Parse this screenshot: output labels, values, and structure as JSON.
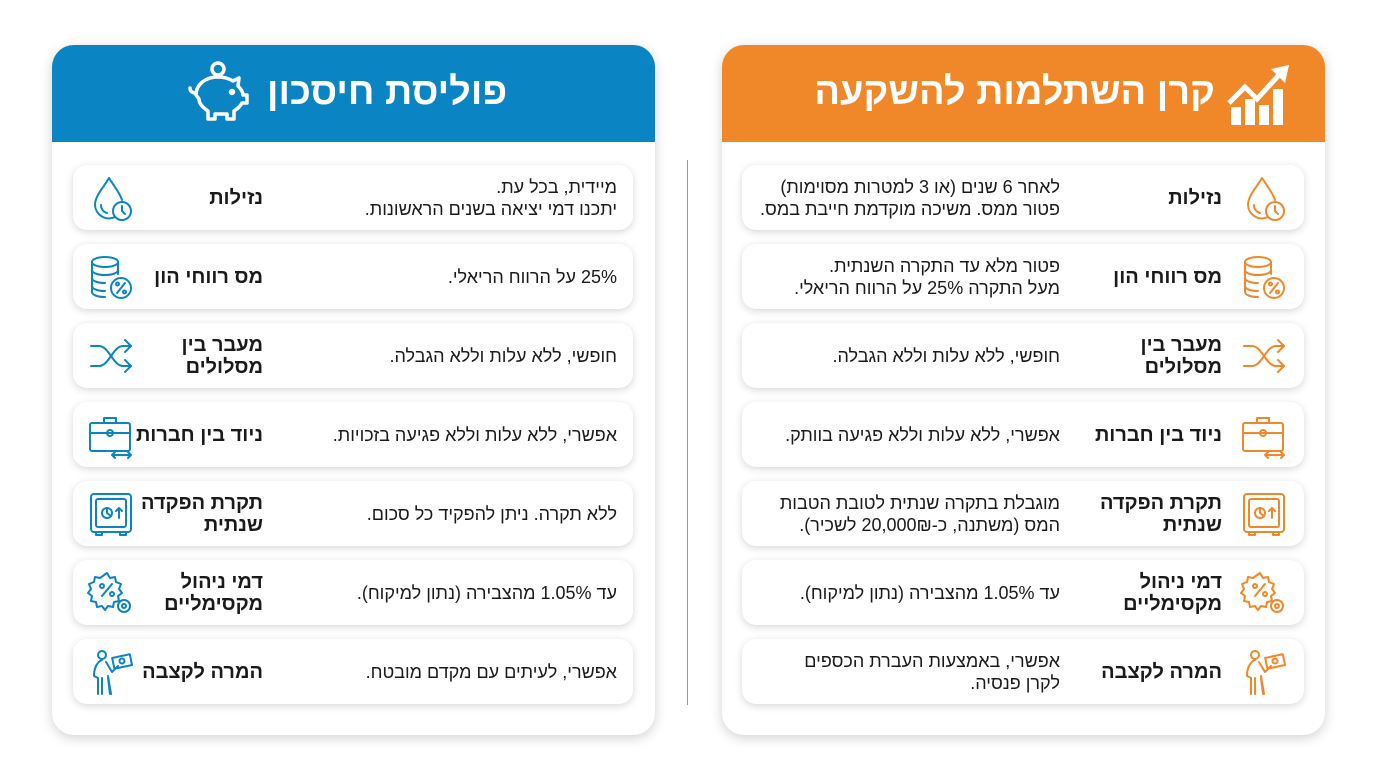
{
  "colors": {
    "left_accent": "#0b84c4",
    "right_accent": "#f0882a"
  },
  "left_panel": {
    "title": "פוליסת חיסכון",
    "header_icon": "piggy-bank-icon",
    "rows": [
      {
        "icon": "droplet-clock-icon",
        "label": "נזילות",
        "desc": "מיידית, בכל עת.\nיתכנו דמי יציאה בשנים הראשונות."
      },
      {
        "icon": "coins-percent-icon",
        "label": "מס רווחי הון",
        "desc": "25% על הרווח הריאלי."
      },
      {
        "icon": "shuffle-icon",
        "label": "מעבר בין\nמסלולים",
        "desc": "חופשי, ללא עלות וללא הגבלה."
      },
      {
        "icon": "briefcase-transfer-icon",
        "label": "ניוד בין חברות",
        "desc": "אפשרי, ללא עלות וללא פגיעה בזכויות."
      },
      {
        "icon": "safe-icon",
        "label": "תקרת הפקדה\nשנתית",
        "desc": "ללא תקרה. ניתן להפקיד כל סכום."
      },
      {
        "icon": "gear-percent-icon",
        "label": "דמי ניהול\nמקסימליים",
        "desc": "עד 1.05% מהצבירה (נתון למיקוח)."
      },
      {
        "icon": "elderly-money-icon",
        "label": "המרה לקצבה",
        "desc": "אפשרי, לעיתים עם מקדם מובטח."
      }
    ]
  },
  "right_panel": {
    "title": "קרן השתלמות להשקעה",
    "header_icon": "growth-chart-icon",
    "rows": [
      {
        "icon": "droplet-clock-icon",
        "label": "נזילות",
        "desc": "לאחר 6 שנים (או 3 למטרות מסוימות)\nפטור ממס. משיכה מוקדמת חייבת במס."
      },
      {
        "icon": "coins-percent-icon",
        "label": "מס רווחי הון",
        "desc": "פטור מלא עד התקרה השנתית.\nמעל התקרה 25% על הרווח הריאלי."
      },
      {
        "icon": "shuffle-icon",
        "label": "מעבר בין\nמסלולים",
        "desc": "חופשי, ללא עלות וללא הגבלה."
      },
      {
        "icon": "briefcase-transfer-icon",
        "label": "ניוד בין חברות",
        "desc": "אפשרי, ללא עלות וללא פגיעה בוותק."
      },
      {
        "icon": "safe-icon",
        "label": "תקרת הפקדה\nשנתית",
        "desc": "מוגבלת בתקרה שנתית לטובת הטבות\nהמס (משתנה, כ-20,000₪ לשכיר)."
      },
      {
        "icon": "gear-percent-icon",
        "label": "דמי ניהול\nמקסימליים",
        "desc": "עד 1.05% מהצבירה (נתון למיקוח)."
      },
      {
        "icon": "elderly-money-icon",
        "label": "המרה לקצבה",
        "desc": "אפשרי, באמצעות העברת הכספים\nלקרן פנסיה."
      }
    ]
  }
}
